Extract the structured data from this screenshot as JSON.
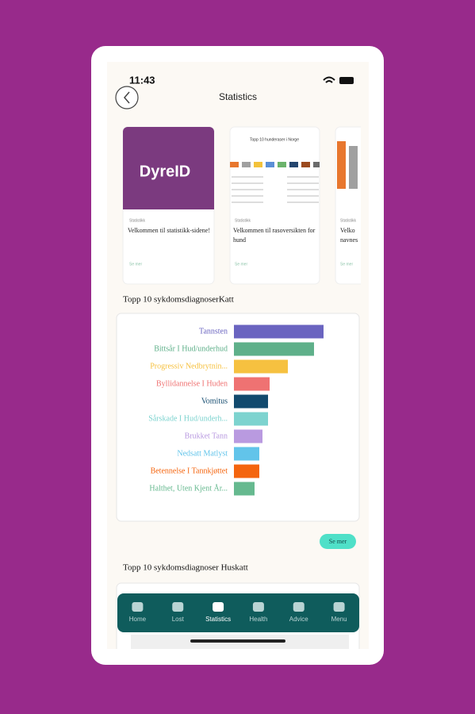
{
  "status_bar": {
    "time": "11:43"
  },
  "header": {
    "title": "Statistics"
  },
  "cards": [
    {
      "logo": "DyreID",
      "tag": "Statistikk",
      "title": "Velkommen til statistikk-sidene!",
      "link": "Se mer"
    },
    {
      "image_title": "Topp 10 hunderaser i Norge",
      "tag": "Statistikk",
      "title": "Velkommen til rasoversikten for hund",
      "link": "Se mer"
    },
    {
      "tag": "Statistikk",
      "title": "Velko navnes",
      "link": "Se mer"
    }
  ],
  "section1": {
    "title": "Topp 10 sykdomsdiagnoserKatt",
    "button": "Se mer"
  },
  "chart": {
    "type": "bar",
    "orientation": "horizontal",
    "categories": [
      "Tannsten",
      "Bittsår I Hud/underhud",
      "Progressiv Nedbrytnin...",
      "Byllidannelse I Huden",
      "Vomitus",
      "Sårskade I Hud/underh...",
      "Brukket Tann",
      "Nedsatt Matlyst",
      "Betennelse I Tannkjøttet",
      "Halthet, Uten Kjent År..."
    ],
    "values": [
      113,
      101,
      68,
      45,
      43,
      43,
      36,
      32,
      32,
      26
    ],
    "colors": [
      "#6a64c0",
      "#5fb08a",
      "#f6c140",
      "#ef7272",
      "#124a6e",
      "#7dd3cf",
      "#b99ae0",
      "#62c4ea",
      "#f4650f",
      "#66b98f"
    ],
    "xlim": [
      0,
      135
    ]
  },
  "section2": {
    "title": "Topp 10 sykdomsdiagnoser Huskatt"
  },
  "nav": [
    "Home",
    "Lost",
    "Statistics",
    "Health",
    "Advice",
    "Menu"
  ]
}
